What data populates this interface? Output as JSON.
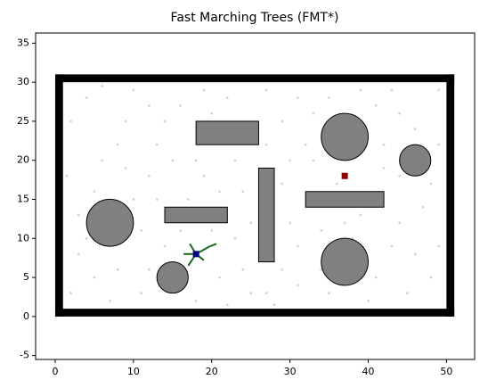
{
  "chart_data": {
    "type": "scatter",
    "title": "Fast Marching Trees (FMT*)",
    "xlim": [
      -2.5,
      53.6
    ],
    "ylim": [
      -5.5,
      36.3
    ],
    "xticks": [
      0,
      10,
      20,
      30,
      40,
      50
    ],
    "yticks": [
      -5,
      0,
      5,
      10,
      15,
      20,
      25,
      30,
      35
    ],
    "samples": {
      "color": "#d3d3d3",
      "x": [
        2,
        4,
        6,
        9,
        11,
        12,
        3,
        5,
        8,
        10,
        13,
        16,
        19,
        21,
        23,
        24,
        22,
        25,
        29,
        30,
        31,
        33,
        35,
        34,
        39,
        41,
        43,
        44,
        46,
        48,
        49,
        47,
        45,
        40,
        36,
        31,
        28,
        17,
        14,
        2,
        3,
        7,
        9,
        11,
        12,
        15,
        18,
        20,
        23,
        27,
        29,
        31,
        33,
        38,
        42,
        44,
        49,
        49,
        43,
        39,
        27,
        19,
        6,
        1.5,
        10,
        14,
        21,
        24,
        29,
        35,
        41,
        46,
        48,
        42,
        32,
        16,
        8,
        5,
        12,
        20,
        25,
        30,
        34,
        44,
        37,
        27,
        22,
        13,
        4,
        18
      ],
      "y": [
        3,
        28,
        20,
        25,
        3,
        18,
        8,
        16,
        6,
        29,
        22,
        27,
        18,
        5,
        10,
        16,
        28,
        3,
        25,
        12,
        4,
        20,
        28,
        11,
        13,
        27,
        9,
        18,
        24,
        5,
        29,
        14,
        3,
        2,
        17,
        28,
        1.5,
        15,
        9,
        25,
        13,
        2,
        19,
        11,
        27,
        20,
        2,
        11,
        20,
        22,
        17,
        9,
        26,
        10,
        22,
        12,
        22,
        9,
        29,
        29,
        29,
        29,
        29.5,
        18,
        15,
        25,
        16,
        6,
        6,
        3,
        5,
        8,
        17,
        19,
        22,
        11,
        22,
        5,
        6,
        26,
        12,
        20,
        6,
        26,
        12,
        3,
        1.5,
        15,
        10,
        20
      ]
    },
    "walls": {
      "color": "#000000",
      "rects": [
        {
          "x": 0,
          "y": 0,
          "width": 1,
          "height": 31
        },
        {
          "x": 50,
          "y": 0,
          "width": 1,
          "height": 31
        },
        {
          "x": 0,
          "y": 0,
          "width": 51,
          "height": 1
        },
        {
          "x": 0,
          "y": 30,
          "width": 51,
          "height": 1
        }
      ]
    },
    "obstacles": {
      "color": "#808080",
      "rects": [
        {
          "x": 18,
          "y": 22,
          "width": 8,
          "height": 3
        },
        {
          "x": 14,
          "y": 12,
          "width": 8,
          "height": 2
        },
        {
          "x": 26,
          "y": 7,
          "width": 2,
          "height": 12
        },
        {
          "x": 32,
          "y": 14,
          "width": 10,
          "height": 2
        }
      ],
      "circles": [
        {
          "x": 37,
          "y": 23,
          "r": 3
        },
        {
          "x": 46,
          "y": 20,
          "r": 2
        },
        {
          "x": 7,
          "y": 12,
          "r": 3
        },
        {
          "x": 37,
          "y": 7,
          "r": 3
        },
        {
          "x": 15,
          "y": 5,
          "r": 2
        }
      ]
    },
    "tree": {
      "color": "#1a6b1a",
      "edges": [
        [
          18,
          8,
          19.8,
          9
        ],
        [
          18,
          8,
          16.4,
          8
        ],
        [
          18,
          8,
          17,
          6.5
        ],
        [
          18,
          8,
          17.2,
          9.3
        ],
        [
          18,
          8,
          19,
          7.2
        ],
        [
          19.8,
          9,
          20.6,
          9.3
        ]
      ]
    },
    "start": {
      "x": 18,
      "y": 8,
      "color": "#00008b"
    },
    "goal": {
      "x": 37,
      "y": 18,
      "color": "#8b0000"
    }
  }
}
